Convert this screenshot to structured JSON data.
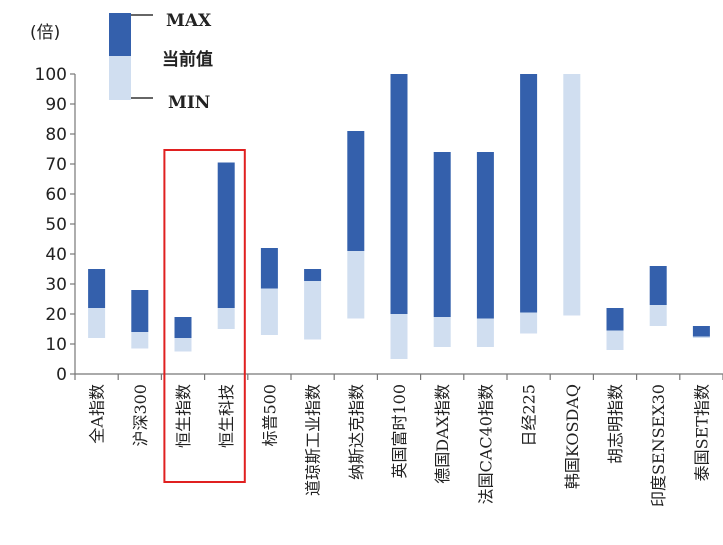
{
  "colors": {
    "upper": "#3460ac",
    "lower": "#d0def0",
    "axis": "#777777",
    "highlight": "#e02020"
  },
  "chart_data": {
    "type": "bar",
    "subtype": "floating-range",
    "unit": "(倍)",
    "ylim": [
      0,
      100
    ],
    "yticks": [
      0,
      10,
      20,
      30,
      40,
      50,
      60,
      70,
      80,
      90,
      100
    ],
    "legend": {
      "max": "MAX",
      "current": "当前值",
      "min": "MIN"
    },
    "categories": [
      "全A指数",
      "沪深300",
      "恒生指数",
      "恒生科技",
      "标普500",
      "道琼斯工业指数",
      "纳斯达克指数",
      "英国富时100",
      "德国DAX指数",
      "法国CAC40指数",
      "日经225",
      "韩国KOSDAQ",
      "胡志明指数",
      "印度SENSEX30",
      "泰国SET指数"
    ],
    "series": [
      {
        "name": "MIN",
        "values": [
          12,
          8.5,
          7.5,
          15,
          13,
          11.5,
          18.5,
          5,
          9,
          9,
          13.5,
          19.5,
          8,
          16,
          12
        ]
      },
      {
        "name": "当前值",
        "values": [
          22,
          14,
          12,
          22,
          28.5,
          31,
          41,
          20,
          19,
          18.5,
          20.5,
          100,
          14.5,
          23,
          12.5
        ]
      },
      {
        "name": "MAX",
        "values": [
          35,
          28,
          19,
          70.5,
          42,
          35,
          81,
          100,
          74,
          74,
          100,
          100,
          22,
          36,
          16
        ]
      }
    ],
    "highlighted": [
      "恒生指数",
      "恒生科技"
    ]
  }
}
